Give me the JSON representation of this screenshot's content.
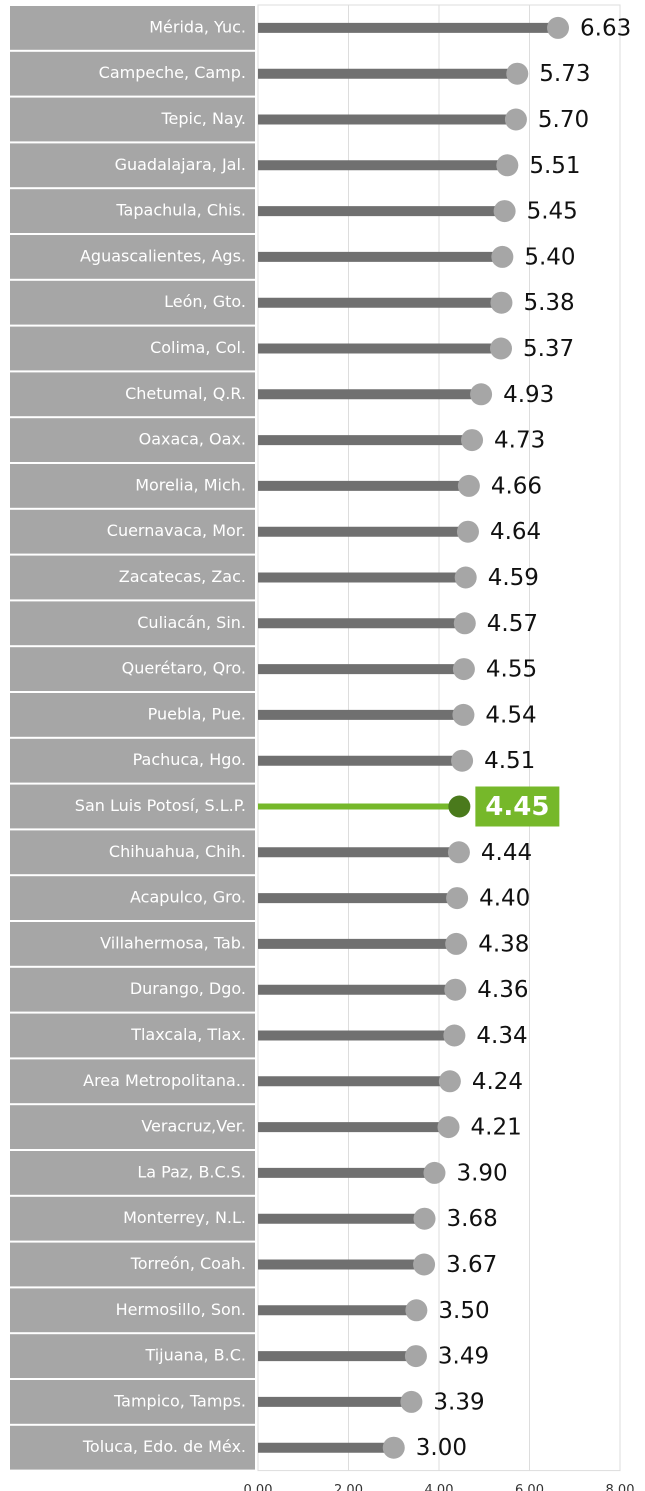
{
  "chart_data": {
    "type": "lollipop",
    "categories": [
      "Mérida, Yuc.",
      "Campeche, Camp.",
      "Tepic, Nay.",
      "Guadalajara, Jal.",
      "Tapachula, Chis.",
      "Aguascalientes, Ags.",
      "León, Gto.",
      "Colima, Col.",
      "Chetumal, Q.R.",
      "Oaxaca, Oax.",
      "Morelia, Mich.",
      "Cuernavaca, Mor.",
      "Zacatecas, Zac.",
      "Culiacán, Sin.",
      "Querétaro, Qro.",
      "Puebla, Pue.",
      "Pachuca, Hgo.",
      "San Luis Potosí, S.L.P.",
      "Chihuahua, Chih.",
      "Acapulco, Gro.",
      "Villahermosa, Tab.",
      "Durango, Dgo.",
      "Tlaxcala, Tlax.",
      "Area Metropolitana..",
      "Veracruz,Ver.",
      "La Paz, B.C.S.",
      "Monterrey, N.L.",
      "Torreón, Coah.",
      "Hermosillo, Son.",
      "Tijuana, B.C.",
      "Tampico, Tamps.",
      "Toluca, Edo. de Méx."
    ],
    "values": [
      6.63,
      5.73,
      5.7,
      5.51,
      5.45,
      5.4,
      5.38,
      5.37,
      4.93,
      4.73,
      4.66,
      4.64,
      4.59,
      4.57,
      4.55,
      4.54,
      4.51,
      4.45,
      4.44,
      4.4,
      4.38,
      4.36,
      4.34,
      4.24,
      4.21,
      3.9,
      3.68,
      3.67,
      3.5,
      3.49,
      3.39,
      3.0
    ],
    "value_labels": [
      "6.63",
      "5.73",
      "5.70",
      "5.51",
      "5.45",
      "5.40",
      "5.38",
      "5.37",
      "4.93",
      "4.73",
      "4.66",
      "4.64",
      "4.59",
      "4.57",
      "4.55",
      "4.54",
      "4.51",
      "4.45",
      "4.44",
      "4.40",
      "4.38",
      "4.36",
      "4.34",
      "4.24",
      "4.21",
      "3.90",
      "3.68",
      "3.67",
      "3.50",
      "3.49",
      "3.39",
      "3.00"
    ],
    "color": "#707070",
    "highlight": {
      "index": 17,
      "color": "#76b82a"
    },
    "xlim": [
      0,
      8
    ],
    "xticks": [
      {
        "value": 0,
        "label": "0.00"
      },
      {
        "value": 2,
        "label": "2.00"
      },
      {
        "value": 4,
        "label": "4.00"
      },
      {
        "value": 6,
        "label": "6.00"
      },
      {
        "value": 8,
        "label": "8.00"
      }
    ],
    "grid": true
  }
}
